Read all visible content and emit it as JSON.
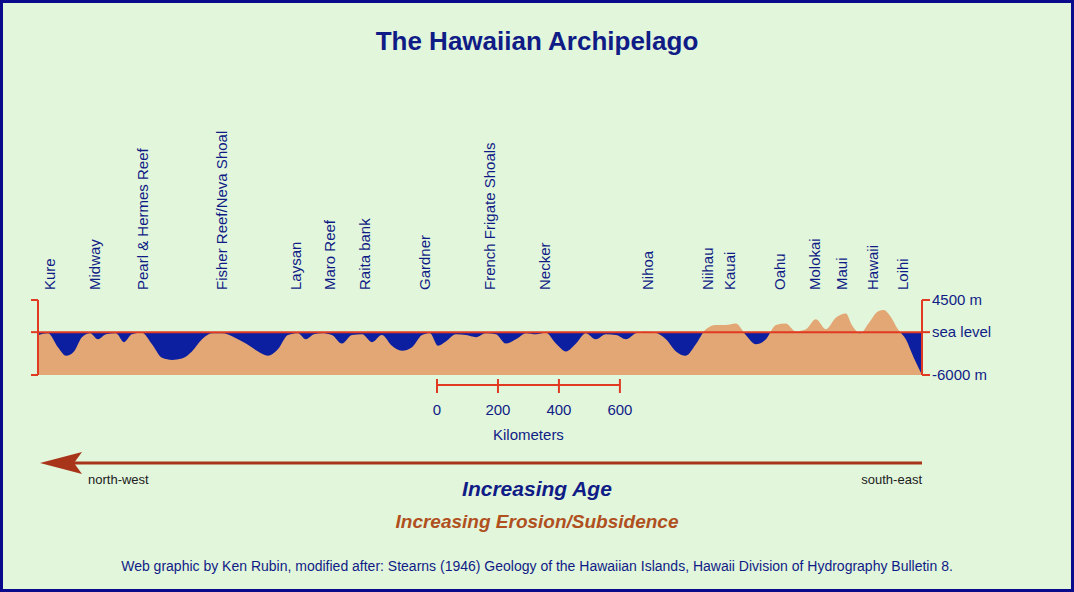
{
  "chart_data": {
    "type": "area",
    "title": "The Hawaiian Archipelago",
    "color": "#e3a775",
    "x": [
      0,
      33,
      66,
      92,
      118,
      144,
      171,
      197,
      223,
      256,
      282,
      308,
      341,
      374,
      407,
      440,
      472,
      505,
      538,
      571,
      604,
      643,
      682,
      722,
      754,
      787,
      820,
      853,
      879,
      905,
      932,
      964,
      997,
      1030,
      1063,
      1096,
      1128,
      1161,
      1194,
      1227,
      1260,
      1286,
      1312,
      1338,
      1371,
      1404,
      1437,
      1469,
      1502,
      1535,
      1568,
      1601,
      1633,
      1666,
      1699,
      1732,
      1765,
      1797,
      1830,
      1863,
      1896,
      1929,
      1961,
      1994,
      2027,
      2060,
      2093,
      2125,
      2158,
      2191,
      2224,
      2257,
      2289,
      2322,
      2355,
      2388,
      2421,
      2453,
      2486,
      2519,
      2552,
      2585,
      2617,
      2650,
      2670,
      2696,
      2729,
      2755,
      2775,
      2795,
      2821,
      2847,
      2873,
      2900
    ],
    "values": [
      -400,
      -150,
      -2150,
      -3300,
      -2700,
      -700,
      -150,
      -1000,
      -300,
      -150,
      -1400,
      -300,
      -100,
      -1700,
      -3600,
      -3900,
      -3700,
      -2700,
      -1000,
      -150,
      -150,
      -700,
      -1600,
      -2700,
      -3300,
      -2400,
      -400,
      -150,
      -1000,
      -300,
      -150,
      -400,
      -1600,
      -400,
      -300,
      -1400,
      -400,
      -1900,
      -2600,
      -2100,
      -400,
      -150,
      -1900,
      -1300,
      -300,
      -400,
      -700,
      -150,
      -300,
      -1600,
      -1000,
      -150,
      -300,
      -100,
      -1600,
      -2700,
      -1600,
      -150,
      -1000,
      -300,
      -400,
      -1000,
      -150,
      100,
      -100,
      -1000,
      -2700,
      -3300,
      -1700,
      400,
      1000,
      1000,
      1200,
      -400,
      -1700,
      -1000,
      1000,
      1200,
      100,
      400,
      1800,
      400,
      2000,
      2600,
      1000,
      -150,
      1500,
      2900,
      3100,
      2300,
      400,
      -1000,
      -3600,
      -6000
    ],
    "xlim": [
      0,
      2900
    ],
    "ylim": [
      -6000,
      4500
    ],
    "yticks": [
      {
        "value": 4500,
        "label": "4500 m"
      },
      {
        "value": 0,
        "label": "sea level"
      },
      {
        "value": -6000,
        "label": "-6000 m"
      }
    ],
    "tick_labels": "y",
    "annotations": [
      {
        "text": "Kure",
        "x": 39
      },
      {
        "text": "Midway",
        "x": 187
      },
      {
        "text": "Pearl & Hermes Reef",
        "x": 345
      },
      {
        "text": "Fisher Reef/Neva Shoal",
        "x": 604
      },
      {
        "text": "Laysan",
        "x": 846
      },
      {
        "text": "Maro Reef",
        "x": 958
      },
      {
        "text": "Raita bank",
        "x": 1073
      },
      {
        "text": "Gardner",
        "x": 1270
      },
      {
        "text": "French Frigate Shoals",
        "x": 1483
      },
      {
        "text": "Necker",
        "x": 1663
      },
      {
        "text": "Nihoa",
        "x": 2001
      },
      {
        "text": "Niihau",
        "x": 2198
      },
      {
        "text": "Kauai",
        "x": 2270
      },
      {
        "text": "Oahu",
        "x": 2434
      },
      {
        "text": "Molokai",
        "x": 2548
      },
      {
        "text": "Maui",
        "x": 2637
      },
      {
        "text": "Hawaii",
        "x": 2739
      },
      {
        "text": "Loihi",
        "x": 2837
      }
    ],
    "scale_bar": {
      "ticks": [
        0,
        200,
        400,
        600
      ],
      "label": "Kilometers"
    },
    "direction": {
      "left": "north-west",
      "right": "south-east"
    },
    "captions": [
      "Increasing Age",
      "Increasing Erosion/Subsidence"
    ],
    "source": "Web graphic by Ken Rubin, modified after: Stearns (1946) Geology of the Hawaiian Islands, Hawaii Division of Hydrography Bulletin 8."
  }
}
